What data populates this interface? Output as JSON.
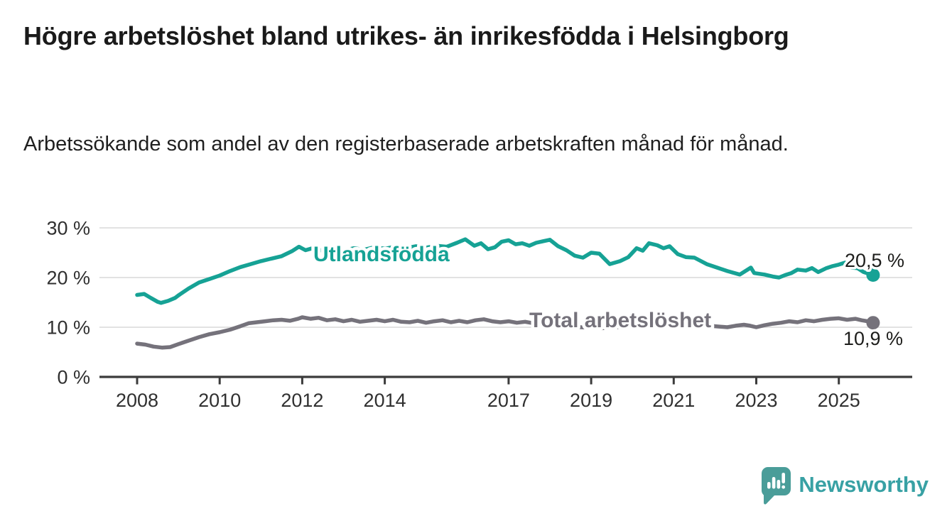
{
  "title": "Högre arbetslöshet bland utrikes- än inrikesfödda i Helsingborg",
  "subtitle": "Arbetssökande som andel av den registerbaserade arbetskraften månad för månad.",
  "footer": {
    "brand": "Newsworthy",
    "brand_color": "#38a1a4",
    "logo_icon": "bar-chart-speech-bubble-icon",
    "logo_icon_color": "#4a9d99"
  },
  "chart_data": {
    "type": "line",
    "title": "Högre arbetslöshet bland utrikes- än inrikesfödda i Helsingborg",
    "subtitle": "Arbetssökande som andel av den registerbaserade arbetskraften månad för månad.",
    "unit": "percent",
    "grid": "horizontal",
    "legend": "inline-labels",
    "x_axis": {
      "tick_years": [
        2008,
        2010,
        2012,
        2014,
        2017,
        2019,
        2021,
        2023,
        2025
      ],
      "tick_labels": [
        "2008",
        "2010",
        "2012",
        "2014",
        "2017",
        "2019",
        "2021",
        "2023",
        "2025"
      ],
      "data_range": [
        2008.0,
        2025.83
      ]
    },
    "y_axis": {
      "ticks": [
        0,
        10,
        20,
        30
      ],
      "tick_labels": [
        "0 %",
        "10 %",
        "20 %",
        "30 %"
      ],
      "range": [
        0,
        30
      ]
    },
    "axis_color": "#3b3b3b",
    "grid_color": "#d9d9d9",
    "series": [
      {
        "name": "Utlandsfödda",
        "label": "Utlandsfödda",
        "color": "#16a295",
        "end_label": "20,5 %",
        "last_value": 20.5,
        "points": [
          [
            2008.0,
            16.5
          ],
          [
            2008.17,
            16.7
          ],
          [
            2008.33,
            15.9
          ],
          [
            2008.5,
            15.1
          ],
          [
            2008.58,
            14.9
          ],
          [
            2008.75,
            15.3
          ],
          [
            2008.92,
            15.9
          ],
          [
            2009.0,
            16.4
          ],
          [
            2009.25,
            17.8
          ],
          [
            2009.5,
            19.0
          ],
          [
            2009.75,
            19.7
          ],
          [
            2010.0,
            20.4
          ],
          [
            2010.25,
            21.3
          ],
          [
            2010.5,
            22.1
          ],
          [
            2010.75,
            22.7
          ],
          [
            2011.0,
            23.3
          ],
          [
            2011.25,
            23.8
          ],
          [
            2011.5,
            24.3
          ],
          [
            2011.75,
            25.3
          ],
          [
            2011.92,
            26.2
          ],
          [
            2012.08,
            25.5
          ],
          [
            2012.25,
            25.9
          ],
          [
            2012.5,
            25.4
          ],
          [
            2012.75,
            25.8
          ],
          [
            2013.0,
            25.4
          ],
          [
            2013.25,
            25.9
          ],
          [
            2013.5,
            25.6
          ],
          [
            2013.75,
            26.1
          ],
          [
            2014.0,
            25.8
          ],
          [
            2014.25,
            26.2
          ],
          [
            2014.5,
            25.9
          ],
          [
            2014.75,
            26.3
          ],
          [
            2015.0,
            26.0
          ],
          [
            2015.25,
            26.4
          ],
          [
            2015.5,
            26.2
          ],
          [
            2015.75,
            27.0
          ],
          [
            2015.95,
            27.7
          ],
          [
            2016.17,
            26.4
          ],
          [
            2016.33,
            26.9
          ],
          [
            2016.5,
            25.7
          ],
          [
            2016.67,
            26.1
          ],
          [
            2016.83,
            27.2
          ],
          [
            2017.0,
            27.5
          ],
          [
            2017.17,
            26.7
          ],
          [
            2017.33,
            26.9
          ],
          [
            2017.5,
            26.4
          ],
          [
            2017.67,
            27.0
          ],
          [
            2017.83,
            27.3
          ],
          [
            2018.0,
            27.6
          ],
          [
            2018.2,
            26.3
          ],
          [
            2018.4,
            25.5
          ],
          [
            2018.6,
            24.4
          ],
          [
            2018.8,
            24.0
          ],
          [
            2019.0,
            25.0
          ],
          [
            2019.2,
            24.8
          ],
          [
            2019.45,
            22.7
          ],
          [
            2019.7,
            23.3
          ],
          [
            2019.9,
            24.1
          ],
          [
            2020.1,
            25.9
          ],
          [
            2020.25,
            25.4
          ],
          [
            2020.4,
            26.9
          ],
          [
            2020.6,
            26.5
          ],
          [
            2020.75,
            25.9
          ],
          [
            2020.9,
            26.3
          ],
          [
            2021.1,
            24.7
          ],
          [
            2021.3,
            24.1
          ],
          [
            2021.5,
            24.0
          ],
          [
            2021.8,
            22.7
          ],
          [
            2022.05,
            22.0
          ],
          [
            2022.3,
            21.3
          ],
          [
            2022.6,
            20.6
          ],
          [
            2022.87,
            22.0
          ],
          [
            2022.95,
            20.9
          ],
          [
            2023.2,
            20.6
          ],
          [
            2023.4,
            20.2
          ],
          [
            2023.55,
            20.0
          ],
          [
            2023.7,
            20.5
          ],
          [
            2023.85,
            20.9
          ],
          [
            2024.0,
            21.6
          ],
          [
            2024.2,
            21.4
          ],
          [
            2024.35,
            21.9
          ],
          [
            2024.5,
            21.1
          ],
          [
            2024.7,
            21.9
          ],
          [
            2024.85,
            22.3
          ],
          [
            2025.0,
            22.6
          ],
          [
            2025.15,
            23.0
          ],
          [
            2025.3,
            22.0
          ],
          [
            2025.45,
            21.9
          ],
          [
            2025.6,
            21.1
          ],
          [
            2025.75,
            20.7
          ],
          [
            2025.83,
            20.5
          ]
        ]
      },
      {
        "name": "Total arbetslöshet",
        "label": "Total arbetslöshet",
        "color": "#75727b",
        "end_label": "10,9 %",
        "last_value": 10.9,
        "points": [
          [
            2008.0,
            6.7
          ],
          [
            2008.2,
            6.5
          ],
          [
            2008.4,
            6.1
          ],
          [
            2008.6,
            5.9
          ],
          [
            2008.8,
            6.0
          ],
          [
            2009.0,
            6.6
          ],
          [
            2009.25,
            7.3
          ],
          [
            2009.5,
            8.0
          ],
          [
            2009.75,
            8.6
          ],
          [
            2010.0,
            9.0
          ],
          [
            2010.25,
            9.5
          ],
          [
            2010.5,
            10.2
          ],
          [
            2010.7,
            10.8
          ],
          [
            2010.9,
            11.0
          ],
          [
            2011.1,
            11.2
          ],
          [
            2011.3,
            11.4
          ],
          [
            2011.5,
            11.5
          ],
          [
            2011.7,
            11.3
          ],
          [
            2011.9,
            11.7
          ],
          [
            2012.0,
            12.0
          ],
          [
            2012.2,
            11.7
          ],
          [
            2012.4,
            11.9
          ],
          [
            2012.6,
            11.4
          ],
          [
            2012.8,
            11.6
          ],
          [
            2013.0,
            11.2
          ],
          [
            2013.2,
            11.5
          ],
          [
            2013.4,
            11.1
          ],
          [
            2013.6,
            11.3
          ],
          [
            2013.8,
            11.5
          ],
          [
            2014.0,
            11.2
          ],
          [
            2014.2,
            11.5
          ],
          [
            2014.4,
            11.1
          ],
          [
            2014.6,
            11.0
          ],
          [
            2014.8,
            11.3
          ],
          [
            2015.0,
            10.9
          ],
          [
            2015.2,
            11.2
          ],
          [
            2015.4,
            11.4
          ],
          [
            2015.6,
            11.0
          ],
          [
            2015.8,
            11.3
          ],
          [
            2016.0,
            11.0
          ],
          [
            2016.2,
            11.4
          ],
          [
            2016.4,
            11.6
          ],
          [
            2016.6,
            11.2
          ],
          [
            2016.8,
            11.0
          ],
          [
            2017.0,
            11.2
          ],
          [
            2017.2,
            10.9
          ],
          [
            2017.4,
            11.1
          ],
          [
            2017.6,
            10.8
          ],
          [
            2017.8,
            10.6
          ],
          [
            2018.0,
            10.5
          ],
          [
            2018.25,
            10.3
          ],
          [
            2018.5,
            10.1
          ],
          [
            2018.75,
            10.0
          ],
          [
            2019.0,
            9.9
          ],
          [
            2019.25,
            9.8
          ],
          [
            2019.5,
            9.9
          ],
          [
            2019.75,
            10.1
          ],
          [
            2020.0,
            10.3
          ],
          [
            2020.2,
            11.4
          ],
          [
            2020.4,
            12.1
          ],
          [
            2020.6,
            12.3
          ],
          [
            2020.8,
            12.0
          ],
          [
            2021.0,
            11.6
          ],
          [
            2021.25,
            11.1
          ],
          [
            2021.5,
            10.7
          ],
          [
            2021.75,
            10.4
          ],
          [
            2022.0,
            10.2
          ],
          [
            2022.3,
            10.0
          ],
          [
            2022.5,
            10.3
          ],
          [
            2022.7,
            10.5
          ],
          [
            2022.85,
            10.3
          ],
          [
            2023.0,
            10.0
          ],
          [
            2023.2,
            10.4
          ],
          [
            2023.4,
            10.7
          ],
          [
            2023.6,
            10.9
          ],
          [
            2023.8,
            11.2
          ],
          [
            2024.0,
            11.0
          ],
          [
            2024.2,
            11.4
          ],
          [
            2024.4,
            11.2
          ],
          [
            2024.6,
            11.5
          ],
          [
            2024.8,
            11.7
          ],
          [
            2025.0,
            11.8
          ],
          [
            2025.2,
            11.5
          ],
          [
            2025.4,
            11.7
          ],
          [
            2025.55,
            11.4
          ],
          [
            2025.7,
            11.2
          ],
          [
            2025.83,
            10.9
          ]
        ]
      }
    ]
  }
}
